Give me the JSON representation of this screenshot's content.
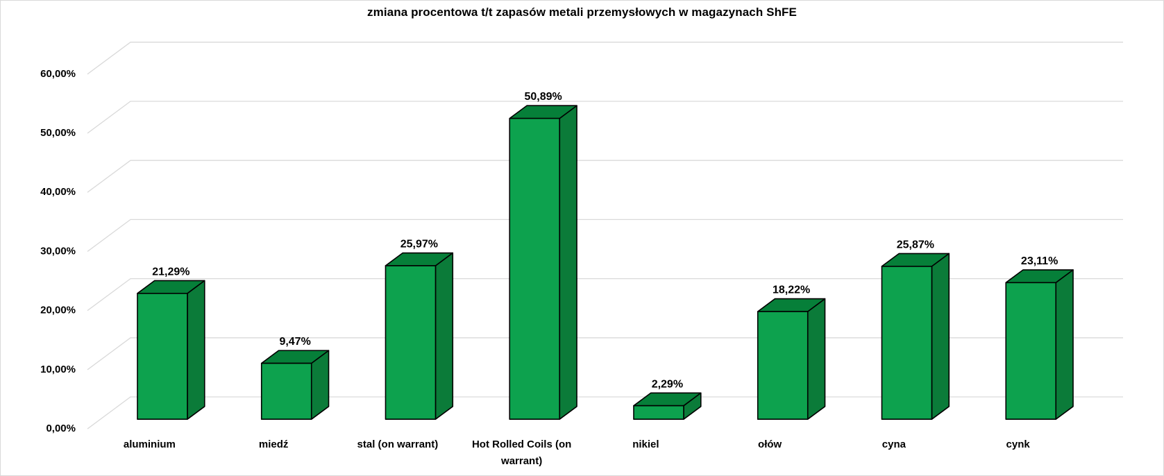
{
  "window": {
    "background": "#FFFFFF",
    "border_color": "#D9D9D9"
  },
  "chart_data": {
    "type": "bar",
    "style": "3d-column",
    "title": "zmiana procentowa t/t zapasów metali przemysłowych w magazynach ShFE",
    "categories": [
      "aluminium",
      "miedź",
      "stal (on warrant)",
      "Hot Rolled Coils (on warrant)",
      "nikiel",
      "ołów",
      "cyna",
      "cynk"
    ],
    "values": [
      21.29,
      9.47,
      25.97,
      50.89,
      2.29,
      18.22,
      25.87,
      23.11
    ],
    "value_labels": [
      "21,29%",
      "9,47%",
      "25,97%",
      "50,89%",
      "2,29%",
      "18,22%",
      "25,87%",
      "23,11%"
    ],
    "y_ticks": [
      "0,00%",
      "10,00%",
      "20,00%",
      "30,00%",
      "40,00%",
      "50,00%",
      "60,00%"
    ],
    "y_tick_values": [
      0,
      10,
      20,
      30,
      40,
      50,
      60
    ],
    "xlabel": "",
    "ylabel": "",
    "ylim": [
      0,
      60
    ],
    "grid": true,
    "legend_position": "none",
    "colors": {
      "bar_front": "#0DA24E",
      "bar_top": "#067F39",
      "bar_side": "#0B7B39",
      "bar_outline": "#000000",
      "gridline": "#D9D9D9",
      "text": "#000000"
    }
  }
}
